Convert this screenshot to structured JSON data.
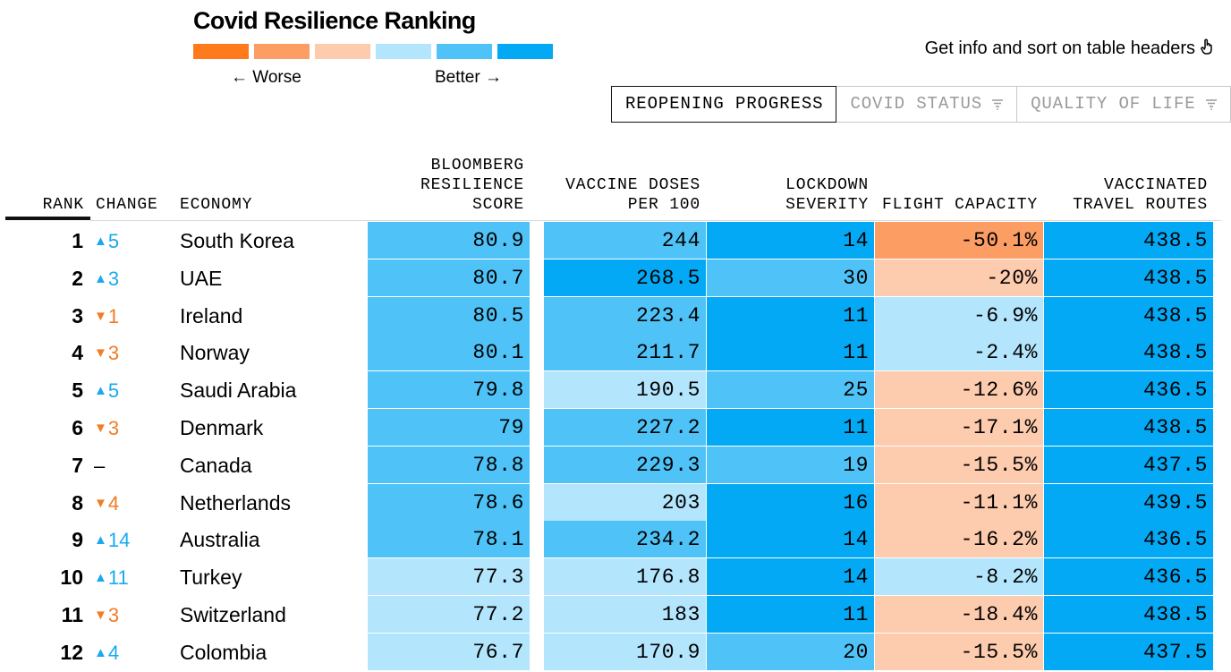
{
  "header": {
    "title": "Covid Resilience Ranking",
    "legend": {
      "colors": [
        "#ff7a1c",
        "#fc9d64",
        "#fdcbae",
        "#b3e5fc",
        "#4fc3f7",
        "#03a9f4"
      ],
      "worse_label": "← Worse",
      "better_label": "Better →"
    },
    "hint": "Get info and sort on table headers",
    "hint_icon": "pointer-hand-icon"
  },
  "tabs": [
    {
      "label": "REOPENING PROGRESS",
      "active": true
    },
    {
      "label": "COVID STATUS",
      "active": false
    },
    {
      "label": "QUALITY OF LIFE",
      "active": false
    }
  ],
  "table": {
    "columns": {
      "rank": "RANK",
      "change": "CHANGE",
      "economy": "ECONOMY",
      "score": "BLOOMBERG\nRESILIENCE\nSCORE",
      "vaccine": "VACCINE DOSES\nPER 100",
      "lockdown": "LOCKDOWN\nSEVERITY",
      "flight": "FLIGHT CAPACITY",
      "routes": "VACCINATED\nTRAVEL ROUTES"
    },
    "rows": [
      {
        "rank": "1",
        "change_dir": "up",
        "change": "5",
        "economy": "South Korea",
        "score": "80.9",
        "vaccine": "244",
        "lockdown": "14",
        "flight": "-50.1%",
        "routes": "438.5",
        "colors": [
          "#4fc3f7",
          "#4fc3f7",
          "#03a9f4",
          "#fc9d64",
          "#03a9f4"
        ]
      },
      {
        "rank": "2",
        "change_dir": "up",
        "change": "3",
        "economy": "UAE",
        "score": "80.7",
        "vaccine": "268.5",
        "lockdown": "30",
        "flight": "-20%",
        "routes": "438.5",
        "colors": [
          "#4fc3f7",
          "#03a9f4",
          "#4fc3f7",
          "#fdcbae",
          "#03a9f4"
        ]
      },
      {
        "rank": "3",
        "change_dir": "down",
        "change": "1",
        "economy": "Ireland",
        "score": "80.5",
        "vaccine": "223.4",
        "lockdown": "11",
        "flight": "-6.9%",
        "routes": "438.5",
        "colors": [
          "#4fc3f7",
          "#4fc3f7",
          "#03a9f4",
          "#b3e5fc",
          "#03a9f4"
        ]
      },
      {
        "rank": "4",
        "change_dir": "down",
        "change": "3",
        "economy": "Norway",
        "score": "80.1",
        "vaccine": "211.7",
        "lockdown": "11",
        "flight": "-2.4%",
        "routes": "438.5",
        "colors": [
          "#4fc3f7",
          "#4fc3f7",
          "#03a9f4",
          "#b3e5fc",
          "#03a9f4"
        ]
      },
      {
        "rank": "5",
        "change_dir": "up",
        "change": "5",
        "economy": "Saudi Arabia",
        "score": "79.8",
        "vaccine": "190.5",
        "lockdown": "25",
        "flight": "-12.6%",
        "routes": "436.5",
        "colors": [
          "#4fc3f7",
          "#b3e5fc",
          "#4fc3f7",
          "#fdcbae",
          "#03a9f4"
        ]
      },
      {
        "rank": "6",
        "change_dir": "down",
        "change": "3",
        "economy": "Denmark",
        "score": "79",
        "vaccine": "227.2",
        "lockdown": "11",
        "flight": "-17.1%",
        "routes": "438.5",
        "colors": [
          "#4fc3f7",
          "#4fc3f7",
          "#03a9f4",
          "#fdcbae",
          "#03a9f4"
        ]
      },
      {
        "rank": "7",
        "change_dir": "flat",
        "change": "–",
        "economy": "Canada",
        "score": "78.8",
        "vaccine": "229.3",
        "lockdown": "19",
        "flight": "-15.5%",
        "routes": "437.5",
        "colors": [
          "#4fc3f7",
          "#4fc3f7",
          "#4fc3f7",
          "#fdcbae",
          "#03a9f4"
        ]
      },
      {
        "rank": "8",
        "change_dir": "down",
        "change": "4",
        "economy": "Netherlands",
        "score": "78.6",
        "vaccine": "203",
        "lockdown": "16",
        "flight": "-11.1%",
        "routes": "439.5",
        "colors": [
          "#4fc3f7",
          "#b3e5fc",
          "#03a9f4",
          "#fdcbae",
          "#03a9f4"
        ]
      },
      {
        "rank": "9",
        "change_dir": "up",
        "change": "14",
        "economy": "Australia",
        "score": "78.1",
        "vaccine": "234.2",
        "lockdown": "14",
        "flight": "-16.2%",
        "routes": "436.5",
        "colors": [
          "#4fc3f7",
          "#4fc3f7",
          "#03a9f4",
          "#fdcbae",
          "#03a9f4"
        ]
      },
      {
        "rank": "10",
        "change_dir": "up",
        "change": "11",
        "economy": "Turkey",
        "score": "77.3",
        "vaccine": "176.8",
        "lockdown": "14",
        "flight": "-8.2%",
        "routes": "436.5",
        "colors": [
          "#b3e5fc",
          "#b3e5fc",
          "#03a9f4",
          "#b3e5fc",
          "#03a9f4"
        ]
      },
      {
        "rank": "11",
        "change_dir": "down",
        "change": "3",
        "economy": "Switzerland",
        "score": "77.2",
        "vaccine": "183",
        "lockdown": "11",
        "flight": "-18.4%",
        "routes": "438.5",
        "colors": [
          "#b3e5fc",
          "#b3e5fc",
          "#03a9f4",
          "#fdcbae",
          "#03a9f4"
        ]
      },
      {
        "rank": "12",
        "change_dir": "up",
        "change": "4",
        "economy": "Colombia",
        "score": "76.7",
        "vaccine": "170.9",
        "lockdown": "20",
        "flight": "-15.5%",
        "routes": "437.5",
        "colors": [
          "#b3e5fc",
          "#b3e5fc",
          "#4fc3f7",
          "#fdcbae",
          "#03a9f4"
        ]
      }
    ]
  }
}
